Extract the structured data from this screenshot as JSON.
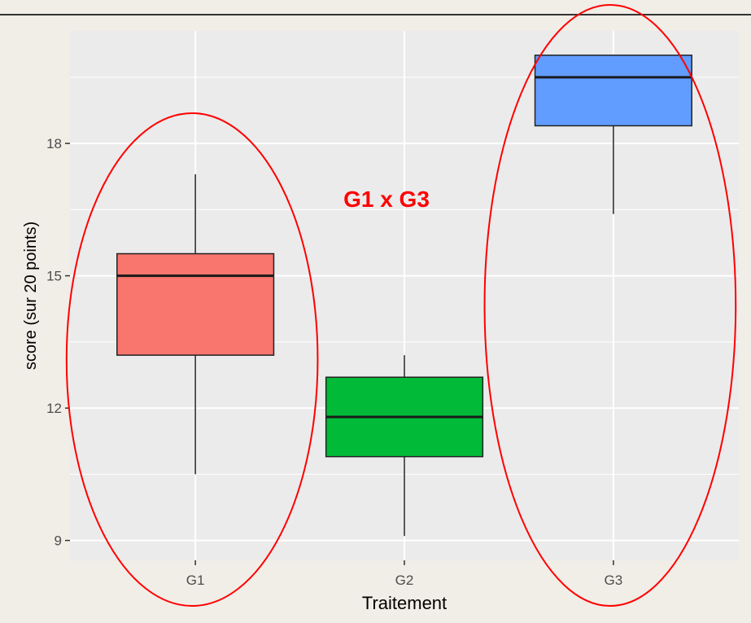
{
  "chart_data": {
    "type": "boxplot",
    "xlabel": "Traitement",
    "ylabel": "score (sur 20 points)",
    "categories": [
      "G1",
      "G2",
      "G3"
    ],
    "yticks": [
      9,
      12,
      15,
      18
    ],
    "ylim": [
      8.55,
      20.55
    ],
    "grid": true,
    "boxes": [
      {
        "group": "G1",
        "whisker_low": 10.5,
        "q1": 13.2,
        "median": 15.0,
        "q3": 15.5,
        "whisker_high": 17.3,
        "color": "#F8766D"
      },
      {
        "group": "G2",
        "whisker_low": 9.1,
        "q1": 10.9,
        "median": 11.8,
        "q3": 12.7,
        "whisker_high": 13.2,
        "color": "#00BA38"
      },
      {
        "group": "G3",
        "whisker_low": 16.4,
        "q1": 18.4,
        "median": 19.5,
        "q3": 20.0,
        "whisker_high": 20.0,
        "color": "#619CFF"
      }
    ],
    "annotation": {
      "text": "G1 x G3",
      "color": "#ff0000"
    },
    "highlight_color": "#ff0000",
    "highlighted_groups": [
      "G1",
      "G3"
    ]
  }
}
